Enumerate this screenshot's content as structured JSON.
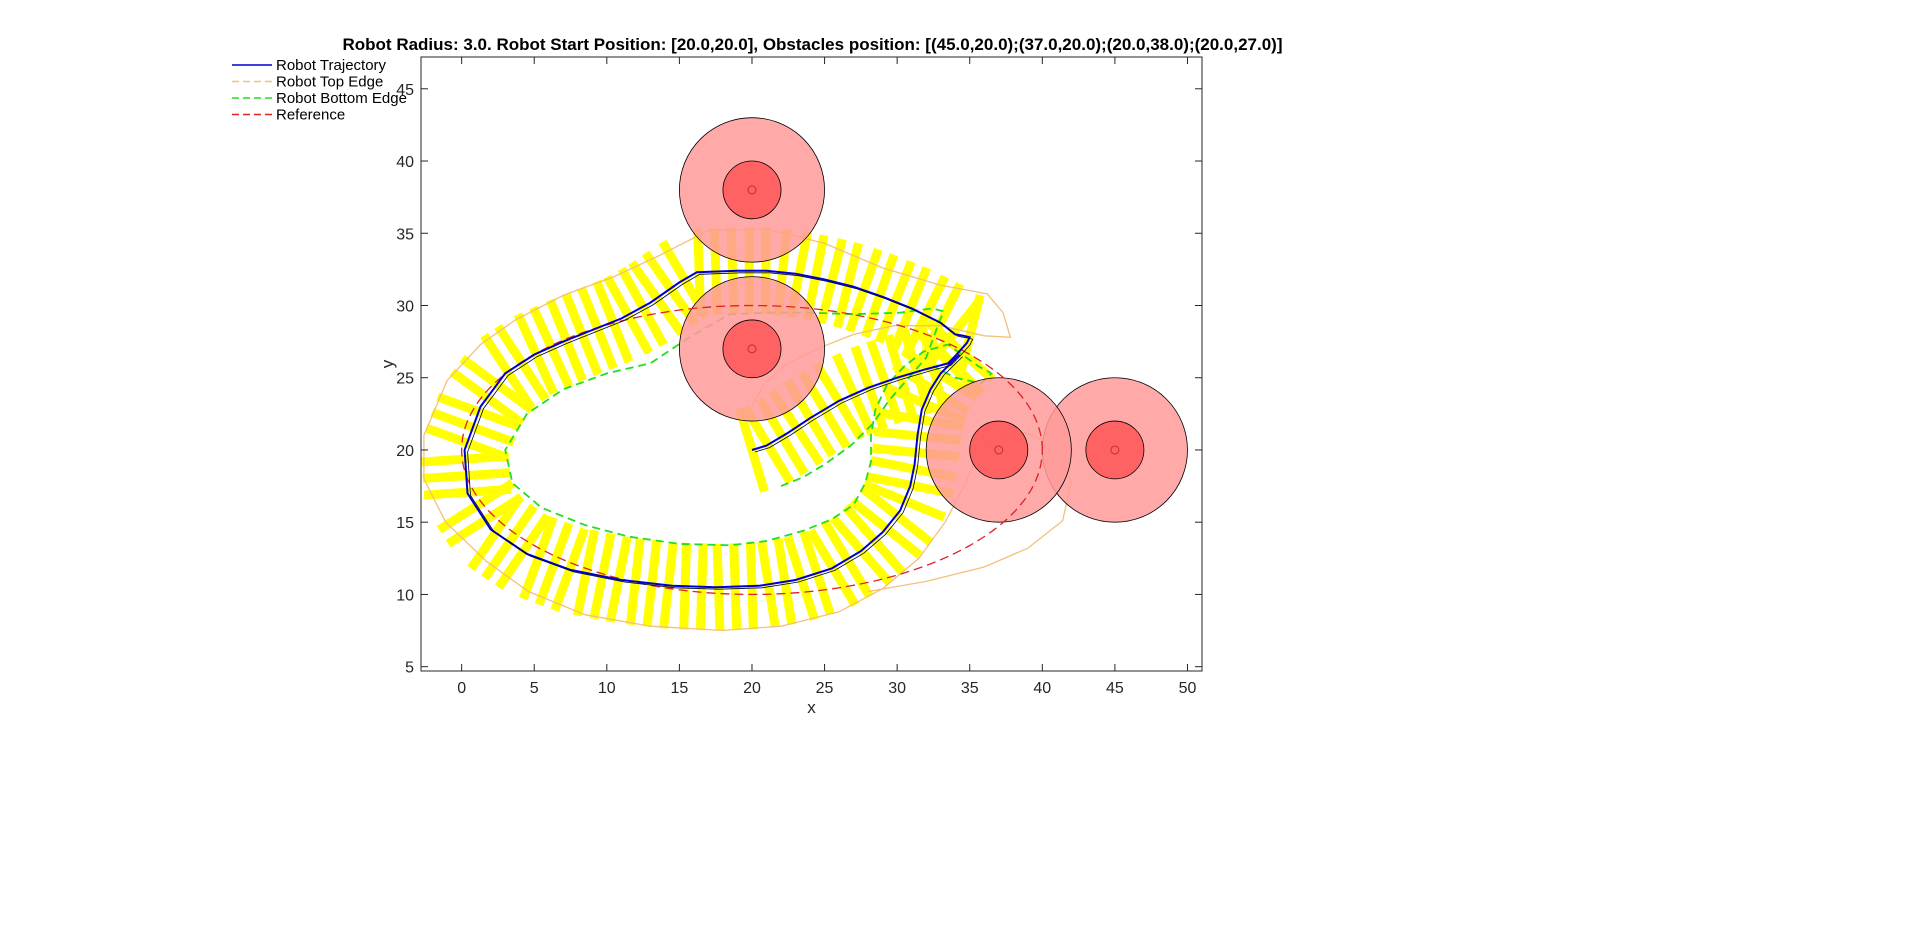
{
  "chart_data": {
    "type": "line",
    "title": "Robot Radius: 3.0. Robot Start Position: [20.0,20.0], Obstacles position: [(45.0,20.0);(37.0,20.0);(20.0,38.0);(20.0,27.0)]",
    "xlabel": "x",
    "ylabel": "y",
    "xlim": [
      -2.8,
      51
    ],
    "ylim": [
      4.7,
      47.2
    ],
    "xticks": [
      0,
      5,
      10,
      15,
      20,
      25,
      30,
      35,
      40,
      45,
      50
    ],
    "yticks": [
      5,
      10,
      15,
      20,
      25,
      30,
      35,
      40,
      45
    ],
    "grid": false,
    "legend_position": "outside-top-left",
    "robot_radius": 3.0,
    "robot_start": [
      20.0,
      20.0
    ],
    "series": [
      {
        "name": "Robot Trajectory",
        "color": "#0000cc",
        "style": "solid",
        "points": [
          [
            20,
            20
          ],
          [
            21,
            20.3
          ],
          [
            22.5,
            21.2
          ],
          [
            24,
            22.2
          ],
          [
            26,
            23.4
          ],
          [
            28,
            24.3
          ],
          [
            30,
            25
          ],
          [
            32,
            25.6
          ],
          [
            33.5,
            26
          ],
          [
            34,
            26.5
          ],
          [
            34.8,
            27.4
          ],
          [
            35,
            27.8
          ],
          [
            34.6,
            27.9
          ],
          [
            34,
            28
          ],
          [
            33,
            28.8
          ],
          [
            31,
            29.8
          ],
          [
            29,
            30.6
          ],
          [
            27,
            31.3
          ],
          [
            25,
            31.8
          ],
          [
            23,
            32.2
          ],
          [
            21,
            32.4
          ],
          [
            19,
            32.4
          ],
          [
            16.2,
            32.3
          ],
          [
            15,
            31.6
          ],
          [
            13,
            30.2
          ],
          [
            11,
            29.1
          ],
          [
            9,
            28.3
          ],
          [
            7,
            27.5
          ],
          [
            5,
            26.6
          ],
          [
            3,
            25.3
          ],
          [
            1.3,
            23
          ],
          [
            0.2,
            20
          ],
          [
            0.4,
            17
          ],
          [
            2,
            14.5
          ],
          [
            4.5,
            12.8
          ],
          [
            7.5,
            11.7
          ],
          [
            11,
            11
          ],
          [
            14.5,
            10.6
          ],
          [
            17.5,
            10.5
          ],
          [
            20.5,
            10.6
          ],
          [
            23,
            11
          ],
          [
            25.5,
            11.8
          ],
          [
            27.5,
            13
          ],
          [
            29,
            14.3
          ],
          [
            30.2,
            15.8
          ],
          [
            30.9,
            17.5
          ],
          [
            31.2,
            19
          ],
          [
            31.4,
            21
          ],
          [
            31.7,
            22.8
          ],
          [
            32.3,
            24.2
          ],
          [
            33,
            25.3
          ],
          [
            33.8,
            26.1
          ],
          [
            34.3,
            26.6
          ]
        ]
      },
      {
        "name": "Robot Top Edge",
        "color": "#f5c07a",
        "style": "dashed",
        "points": [
          [
            20,
            23
          ],
          [
            20.8,
            24.5
          ],
          [
            22.3,
            25.9
          ],
          [
            24.5,
            27
          ],
          [
            27,
            28
          ],
          [
            29.8,
            28.6
          ],
          [
            33,
            28.6
          ],
          [
            36,
            27.9
          ],
          [
            37.8,
            27.8
          ],
          [
            37.3,
            29.5
          ],
          [
            36.2,
            30.8
          ],
          [
            33,
            31.4
          ],
          [
            29,
            32.6
          ],
          [
            25,
            34.3
          ],
          [
            21,
            35.3
          ],
          [
            17,
            35.2
          ],
          [
            13.5,
            33.4
          ],
          [
            10.5,
            32
          ],
          [
            7,
            30.7
          ],
          [
            3.7,
            29
          ],
          [
            1.3,
            27.3
          ],
          [
            -1,
            24.8
          ],
          [
            -2.6,
            21
          ],
          [
            -2.6,
            18
          ],
          [
            -1.1,
            15
          ],
          [
            1.7,
            12.3
          ],
          [
            4.6,
            10.2
          ],
          [
            8.5,
            8.6
          ],
          [
            13,
            7.8
          ],
          [
            18,
            7.5
          ],
          [
            22,
            7.8
          ],
          [
            26,
            8.8
          ],
          [
            29,
            10.4
          ],
          [
            31.5,
            12.5
          ],
          [
            33.3,
            15
          ],
          [
            34.5,
            17.3
          ],
          [
            35.5,
            19.4
          ],
          [
            36.8,
            20.8
          ],
          [
            38.8,
            21.2
          ],
          [
            40.7,
            20.4
          ],
          [
            42,
            17.8
          ],
          [
            41.4,
            15.1
          ],
          [
            39,
            13.2
          ],
          [
            36,
            11.9
          ],
          [
            32,
            10.9
          ],
          [
            28,
            10.2
          ]
        ]
      },
      {
        "name": "Robot Bottom Edge",
        "color": "#22dd22",
        "style": "dashed",
        "points": [
          [
            22,
            17.5
          ],
          [
            23.5,
            18.1
          ],
          [
            25,
            19
          ],
          [
            26.8,
            20.3
          ],
          [
            28.3,
            21.8
          ],
          [
            29.5,
            23.5
          ],
          [
            30.8,
            25
          ],
          [
            32,
            26.4
          ],
          [
            32.8,
            28.6
          ],
          [
            33.2,
            29.6
          ],
          [
            32.4,
            29.8
          ],
          [
            30.2,
            29.5
          ],
          [
            27,
            29.4
          ],
          [
            24,
            29.5
          ],
          [
            21,
            29.5
          ],
          [
            18.5,
            29.4
          ],
          [
            16,
            28
          ],
          [
            13,
            26
          ],
          [
            10,
            25.3
          ],
          [
            7,
            24.2
          ],
          [
            4.5,
            22.5
          ],
          [
            3,
            20
          ],
          [
            3.5,
            17.7
          ],
          [
            5.5,
            16
          ],
          [
            8.5,
            14.8
          ],
          [
            11.5,
            14
          ],
          [
            15,
            13.5
          ],
          [
            18.5,
            13.4
          ],
          [
            21,
            13.7
          ],
          [
            23.5,
            14.4
          ],
          [
            25.5,
            15.2
          ],
          [
            27,
            16.2
          ],
          [
            27.8,
            17.7
          ],
          [
            28.2,
            19.2
          ],
          [
            28.2,
            21
          ],
          [
            28.5,
            22.8
          ],
          [
            29.3,
            24.5
          ],
          [
            30.5,
            25.8
          ],
          [
            31.8,
            26.8
          ],
          [
            33.5,
            27.3
          ],
          [
            35.6,
            25.8
          ],
          [
            36.5,
            25.3
          ],
          [
            35.8,
            24.6
          ],
          [
            34,
            25
          ],
          [
            32.5,
            25.8
          ]
        ]
      },
      {
        "name": "Reference",
        "color": "#dd2222",
        "style": "dashed",
        "points": "ellipse center (20,20) radius_x 20 radius_y 10"
      }
    ],
    "obstacles": [
      {
        "center": [
          45.0,
          20.0
        ],
        "inner_radius": 2.0,
        "outer_radius": 5.0
      },
      {
        "center": [
          37.0,
          20.0
        ],
        "inner_radius": 2.0,
        "outer_radius": 5.0
      },
      {
        "center": [
          20.0,
          38.0
        ],
        "inner_radius": 2.0,
        "outer_radius": 5.0
      },
      {
        "center": [
          20.0,
          27.0
        ],
        "inner_radius": 2.0,
        "outer_radius": 5.0
      }
    ],
    "colors": {
      "robot_body": "#ffff00",
      "obstacle_outer": "#ff9a9a",
      "obstacle_inner": "#ff5a5a",
      "axes": "#262626"
    }
  }
}
